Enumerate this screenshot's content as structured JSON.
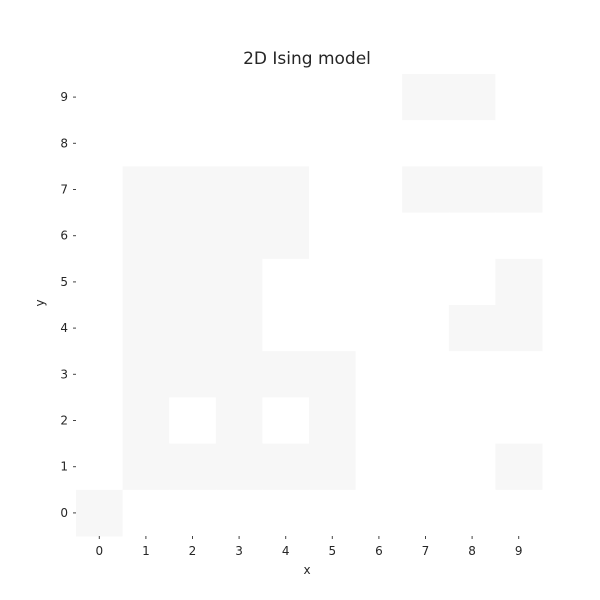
{
  "chart_data": {
    "type": "heatmap",
    "title": "2D Ising model",
    "xlabel": "x",
    "ylabel": "y",
    "x_ticks": [
      "0",
      "1",
      "2",
      "3",
      "4",
      "5",
      "6",
      "7",
      "8",
      "9"
    ],
    "y_ticks": [
      "0",
      "1",
      "2",
      "3",
      "4",
      "5",
      "6",
      "7",
      "8",
      "9"
    ],
    "xlim": [
      -0.5,
      9.5
    ],
    "ylim": [
      -0.5,
      9.5
    ],
    "grid": false,
    "value_encoding": "spin: -1 rendered as near-white, +1 rendered as very light gray",
    "colors": {
      "up": "#f7f7f7",
      "down": "#ffffff"
    },
    "z": [
      [
        -1,
        -1,
        -1,
        -1,
        -1,
        -1,
        -1,
        1,
        1,
        -1
      ],
      [
        -1,
        -1,
        -1,
        -1,
        -1,
        -1,
        -1,
        -1,
        -1,
        -1
      ],
      [
        -1,
        1,
        1,
        1,
        1,
        -1,
        -1,
        1,
        1,
        1
      ],
      [
        -1,
        1,
        1,
        1,
        1,
        -1,
        -1,
        -1,
        -1,
        -1
      ],
      [
        -1,
        1,
        1,
        1,
        -1,
        -1,
        -1,
        -1,
        -1,
        1
      ],
      [
        -1,
        1,
        1,
        1,
        -1,
        -1,
        -1,
        -1,
        1,
        1
      ],
      [
        -1,
        1,
        1,
        1,
        1,
        1,
        -1,
        -1,
        -1,
        -1
      ],
      [
        -1,
        1,
        -1,
        1,
        -1,
        1,
        -1,
        -1,
        -1,
        -1
      ],
      [
        -1,
        1,
        1,
        1,
        1,
        1,
        -1,
        -1,
        -1,
        1
      ],
      [
        1,
        -1,
        -1,
        -1,
        -1,
        -1,
        -1,
        -1,
        -1,
        -1
      ]
    ]
  }
}
